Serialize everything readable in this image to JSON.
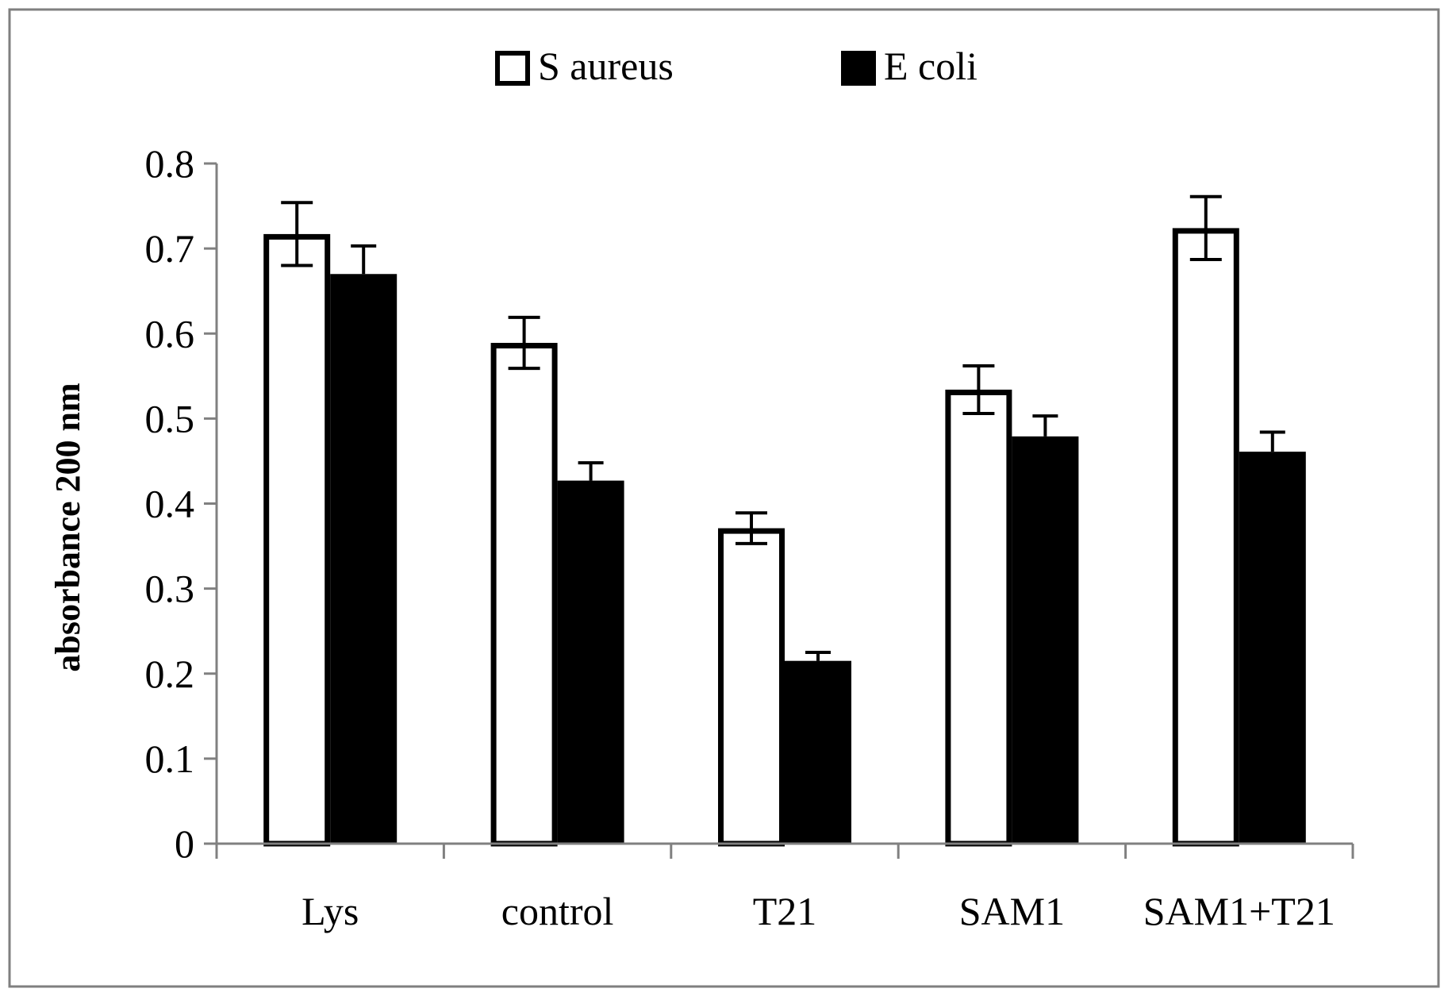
{
  "chart_data": {
    "type": "bar",
    "title": "",
    "xlabel": "",
    "ylabel": "absorbance 200 nm",
    "ylim": [
      0,
      0.8
    ],
    "yticks": [
      "0",
      "0.1",
      "0.2",
      "0.3",
      "0.4",
      "0.5",
      "0.6",
      "0.7",
      "0.8"
    ],
    "legend_position": "top-center",
    "grid": false,
    "categories": [
      "Lys",
      "control",
      "T21",
      "SAM1",
      "SAM1+T21"
    ],
    "series": [
      {
        "name": "S aureus",
        "fill": "#ffffff",
        "stroke": "#000000",
        "values": [
          0.717,
          0.589,
          0.371,
          0.534,
          0.724
        ],
        "errors": [
          0.037,
          0.03,
          0.018,
          0.028,
          0.037
        ]
      },
      {
        "name": "E coli",
        "fill": "#000000",
        "stroke": "#000000",
        "values": [
          0.67,
          0.427,
          0.215,
          0.479,
          0.461
        ],
        "errors": [
          0.033,
          0.021,
          0.01,
          0.024,
          0.023
        ]
      }
    ]
  }
}
